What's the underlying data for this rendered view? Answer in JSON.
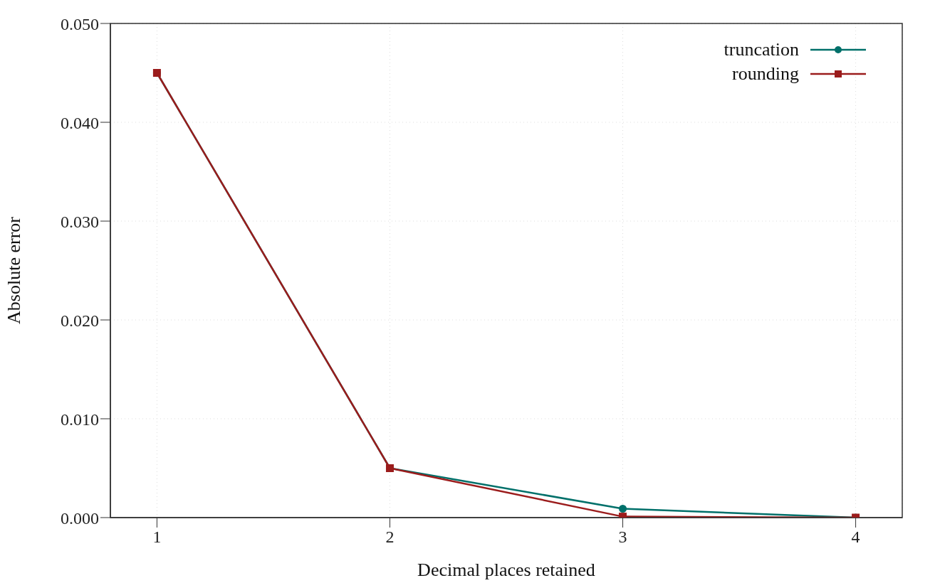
{
  "chart_data": {
    "type": "line",
    "xlabel": "Decimal places retained",
    "ylabel": "Absolute error",
    "x": [
      1,
      2,
      3,
      4
    ],
    "series": [
      {
        "name": "truncation",
        "color": "#00706a",
        "values": [
          0.045,
          0.005,
          0.0009,
          0
        ],
        "marker": "circle"
      },
      {
        "name": "rounding",
        "color": "#9b1c1c",
        "values": [
          0.045,
          0.005,
          0.0001,
          0
        ],
        "marker": "square"
      }
    ],
    "xlim": [
      0.8,
      4.2
    ],
    "xticks": [
      1,
      2,
      3,
      4
    ],
    "ylim": [
      0,
      0.05
    ],
    "yticks": [
      {
        "value": 0,
        "label": "0.000"
      },
      {
        "value": 0.01,
        "label": "0.010"
      },
      {
        "value": 0.02,
        "label": "0.020"
      },
      {
        "value": 0.03,
        "label": "0.030"
      },
      {
        "value": 0.04,
        "label": "0.040"
      },
      {
        "value": 0.05,
        "label": "0.050"
      }
    ],
    "grid": true,
    "legend": "top right",
    "line_style": "solid"
  }
}
